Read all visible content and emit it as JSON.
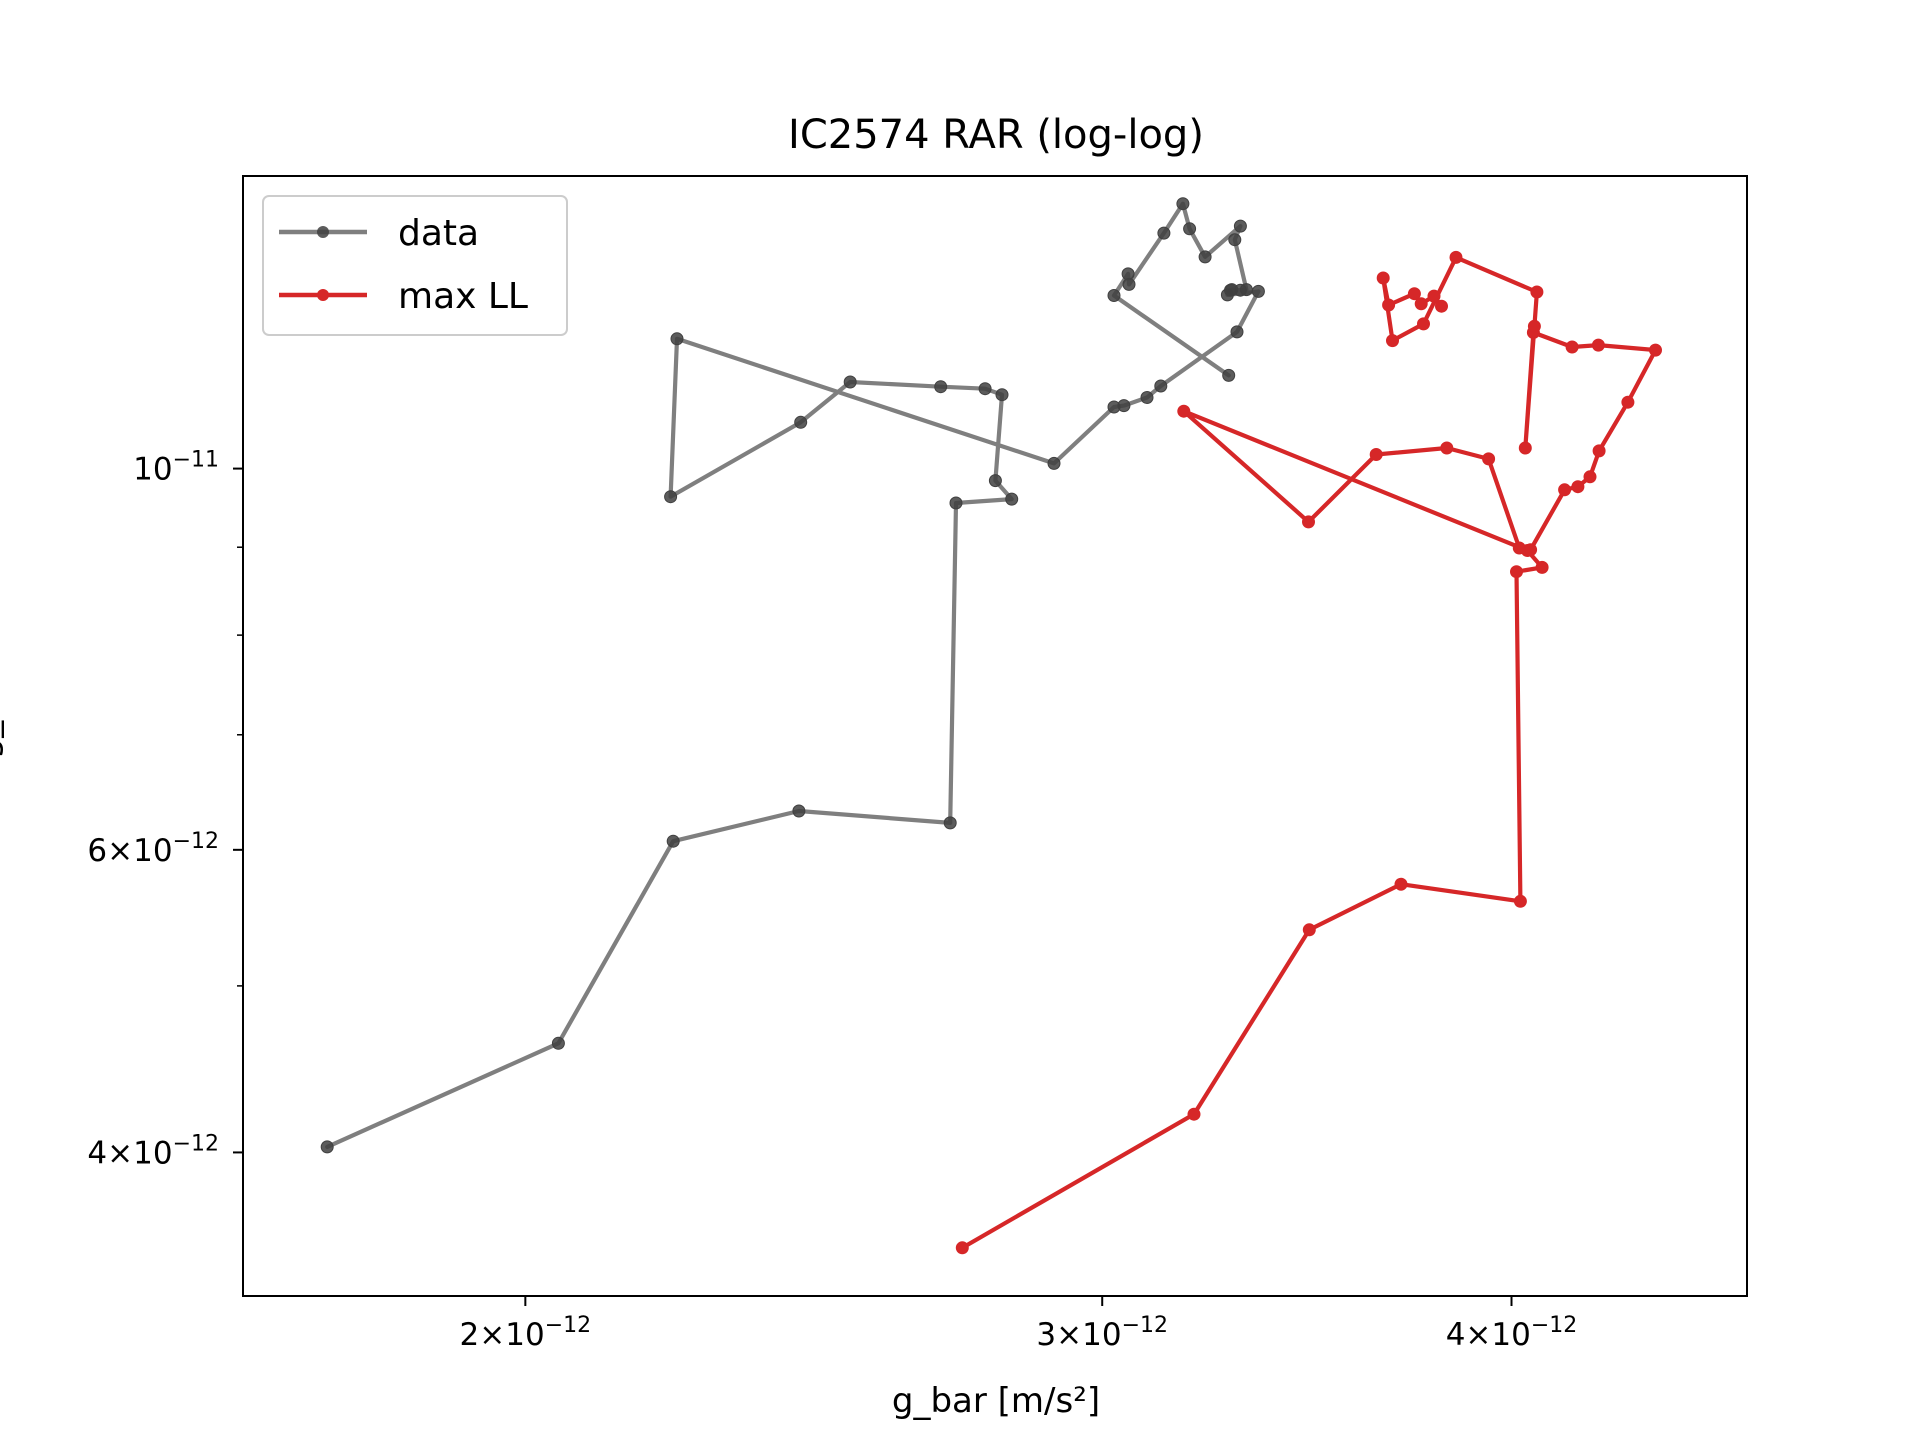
{
  "chart_data": {
    "type": "line",
    "title": "IC2574 RAR (log-log)",
    "xlabel": "g_bar [m/s²]",
    "ylabel": "g_",
    "xscale": "log",
    "yscale": "log",
    "xlim": [
      1.64e-12,
      4.72e-12
    ],
    "ylim": [
      3.3e-12,
      1.48e-11
    ],
    "grid": false,
    "legend_position": "upper-left",
    "x_ticks": [
      {
        "value": 2e-12,
        "mantissa": "2",
        "exponent": "−12"
      },
      {
        "value": 3e-12,
        "mantissa": "3",
        "exponent": "−12"
      },
      {
        "value": 4e-12,
        "mantissa": "4",
        "exponent": "−12"
      }
    ],
    "y_ticks": [
      {
        "value": 4e-12,
        "mantissa": "4",
        "exponent": "−12"
      },
      {
        "value": 6e-12,
        "mantissa": "6",
        "exponent": "−12"
      },
      {
        "value": 1e-11,
        "mantissa": "",
        "exponent": "−11"
      }
    ],
    "y_minor_ticks": [
      5e-12,
      7e-12,
      8e-12,
      9e-12
    ],
    "series": [
      {
        "name": "data",
        "color": "#7f7f7f",
        "marker_color": "#404040",
        "x": [
          1.74e-12,
          2.047e-12,
          2.219e-12,
          2.424e-12,
          2.696e-12,
          2.707e-12,
          2.815e-12,
          2.783e-12,
          2.796e-12,
          2.763e-12,
          2.678e-12,
          2.513e-12,
          2.427e-12,
          2.215e-12,
          2.225e-12,
          2.9e-12,
          3.025e-12,
          3.046e-12,
          3.096e-12,
          3.126e-12,
          3.298e-12,
          3.348e-12,
          3.276e-12,
          3.283e-12,
          3.286e-12,
          3.306e-12,
          3.32e-12,
          3.293e-12,
          3.306e-12,
          3.225e-12,
          3.19e-12,
          3.175e-12,
          3.133e-12,
          3.057e-12,
          3.055e-12,
          3.025e-12,
          3.279e-12
        ],
        "y": [
          4.03e-12,
          4.63e-12,
          6.07e-12,
          6.32e-12,
          6.22e-12,
          9.55e-12,
          9.6e-12,
          9.84e-12,
          1.104e-11,
          1.113e-11,
          1.116e-11,
          1.123e-11,
          1.064e-11,
          9.63e-12,
          1.19e-11,
          1.007e-11,
          1.086e-11,
          1.088e-11,
          1.1e-11,
          1.117e-11,
          1.201e-11,
          1.268e-11,
          1.262e-11,
          1.27e-11,
          1.271e-11,
          1.27e-11,
          1.271e-11,
          1.359e-11,
          1.384e-11,
          1.328e-11,
          1.379e-11,
          1.426e-11,
          1.371e-11,
          1.28e-11,
          1.298e-11,
          1.261e-11,
          1.133e-11
        ]
      },
      {
        "name": "max LL",
        "color": "#d62728",
        "marker_color": "#d62728",
        "x": [
          2.719e-12,
          3.2e-12,
          3.47e-12,
          3.701e-12,
          4.025e-12,
          4.014e-12,
          4.087e-12,
          4.045e-12,
          3.177e-12,
          3.468e-12,
          3.637e-12,
          3.822e-12,
          3.936e-12,
          4.022e-12,
          4.054e-12,
          4.152e-12,
          4.191e-12,
          4.227e-12,
          4.254e-12,
          4.341e-12,
          4.426e-12,
          4.252e-12,
          4.174e-12,
          4.062e-12,
          4.039e-12,
          4.065e-12,
          4.072e-12,
          3.847e-12,
          3.76e-12,
          3.679e-12,
          3.655e-12,
          3.669e-12,
          3.736e-12,
          3.754e-12,
          3.788e-12,
          3.808e-12
        ],
        "y": [
          3.52e-12,
          4.21e-12,
          5.39e-12,
          5.73e-12,
          5.6e-12,
          8.71e-12,
          8.76e-12,
          8.96e-12,
          1.08e-11,
          9.31e-12,
          1.019e-11,
          1.028e-11,
          1.013e-11,
          8.99e-12,
          8.97e-12,
          9.72e-12,
          9.76e-12,
          9.89e-12,
          1.024e-11,
          1.093e-11,
          1.172e-11,
          1.18e-11,
          1.177e-11,
          1.2e-11,
          1.028e-11,
          1.21e-11,
          1.267e-11,
          1.327e-11,
          1.214e-11,
          1.187e-11,
          1.291e-11,
          1.245e-11,
          1.264e-11,
          1.247e-11,
          1.26e-11,
          1.243e-11
        ]
      }
    ]
  }
}
